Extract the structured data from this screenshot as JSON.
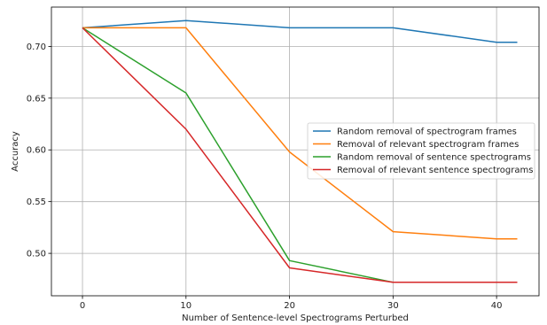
{
  "chart_data": {
    "type": "line",
    "xlabel": "Number of Sentence-level Spectrograms Perturbed",
    "ylabel": "Accuracy",
    "xlim": [
      -3,
      44.1
    ],
    "ylim": [
      0.459,
      0.738
    ],
    "xticks": [
      0,
      10,
      20,
      30,
      40
    ],
    "xtick_labels": [
      "0",
      "10",
      "20",
      "30",
      "40"
    ],
    "yticks": [
      0.5,
      0.55,
      0.6,
      0.65,
      0.7
    ],
    "ytick_labels": [
      "0.50",
      "0.55",
      "0.60",
      "0.65",
      "0.70"
    ],
    "grid": true,
    "legend_position": "center-right",
    "series": [
      {
        "name": "Random removal of spectrogram frames",
        "color": "#1f77b4",
        "x": [
          0,
          10,
          20,
          30,
          40,
          42
        ],
        "y": [
          0.718,
          0.725,
          0.718,
          0.718,
          0.704,
          0.704
        ]
      },
      {
        "name": "Removal of relevant spectrogram frames",
        "color": "#ff7f0e",
        "x": [
          0,
          10,
          20,
          30,
          40,
          42
        ],
        "y": [
          0.718,
          0.718,
          0.598,
          0.521,
          0.514,
          0.514
        ]
      },
      {
        "name": "Random removal of sentence spectrograms",
        "color": "#2ca02c",
        "x": [
          0,
          10,
          20,
          30,
          40,
          42
        ],
        "y": [
          0.718,
          0.655,
          0.493,
          0.472,
          0.472,
          0.472
        ]
      },
      {
        "name": "Removal of relevant sentence spectrograms",
        "color": "#d62728",
        "x": [
          0,
          10,
          20,
          30,
          40,
          42
        ],
        "y": [
          0.718,
          0.62,
          0.486,
          0.472,
          0.472,
          0.472
        ]
      }
    ]
  }
}
